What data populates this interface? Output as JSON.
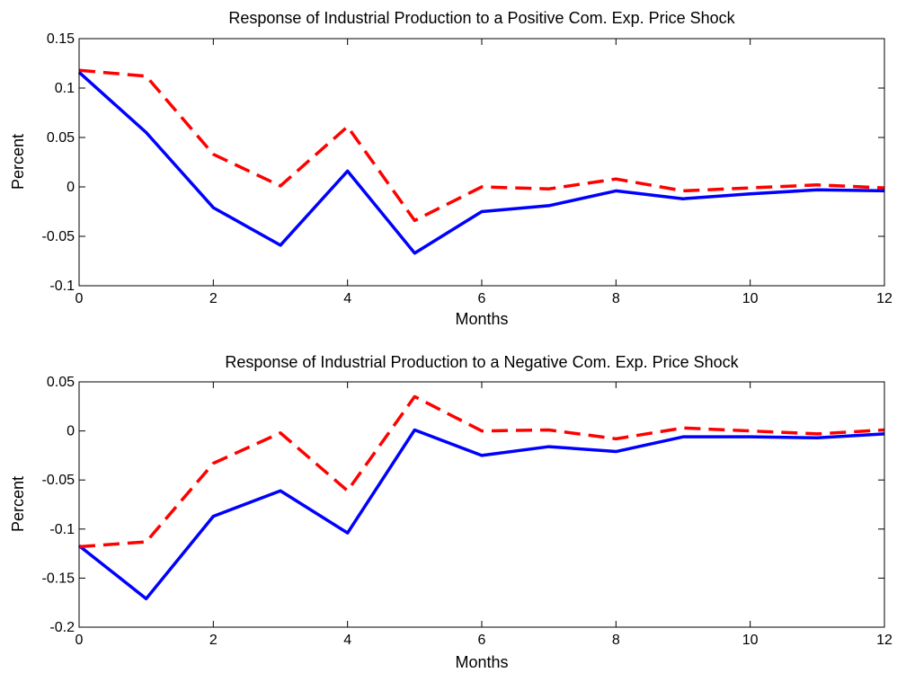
{
  "chart_data": [
    {
      "type": "line",
      "title": "Response of Industrial Production to a Positive Com. Exp. Price Shock",
      "xlabel": "Months",
      "ylabel": "Percent",
      "xlim": [
        0,
        12
      ],
      "ylim": [
        -0.1,
        0.15
      ],
      "xticks": [
        "0",
        "2",
        "4",
        "6",
        "8",
        "10",
        "12"
      ],
      "yticks": [
        "-0.1",
        "-0.05",
        "0",
        "0.05",
        "0.1",
        "0.15"
      ],
      "grid": false,
      "x": [
        0,
        1,
        2,
        3,
        4,
        5,
        6,
        7,
        8,
        9,
        10,
        11,
        12
      ],
      "series": [
        {
          "style": "solid",
          "color": "#0000ff",
          "values": [
            0.116,
            0.055,
            -0.021,
            -0.059,
            0.016,
            -0.067,
            -0.025,
            -0.019,
            -0.004,
            -0.012,
            -0.007,
            -0.003,
            -0.004
          ]
        },
        {
          "style": "dashed",
          "color": "#ff0000",
          "values": [
            0.118,
            0.112,
            0.033,
            0.001,
            0.061,
            -0.034,
            0.0,
            -0.002,
            0.008,
            -0.004,
            -0.001,
            0.002,
            -0.001
          ]
        }
      ]
    },
    {
      "type": "line",
      "title": "Response of Industrial Production to a Negative Com. Exp. Price Shock",
      "xlabel": "Months",
      "ylabel": "Percent",
      "xlim": [
        0,
        12
      ],
      "ylim": [
        -0.2,
        0.05
      ],
      "xticks": [
        "0",
        "2",
        "4",
        "6",
        "8",
        "10",
        "12"
      ],
      "yticks": [
        "-0.2",
        "-0.15",
        "-0.1",
        "-0.05",
        "0",
        "0.05"
      ],
      "grid": false,
      "x": [
        0,
        1,
        2,
        3,
        4,
        5,
        6,
        7,
        8,
        9,
        10,
        11,
        12
      ],
      "series": [
        {
          "style": "solid",
          "color": "#0000ff",
          "values": [
            -0.117,
            -0.171,
            -0.087,
            -0.061,
            -0.104,
            0.001,
            -0.025,
            -0.016,
            -0.021,
            -0.006,
            -0.006,
            -0.007,
            -0.003
          ]
        },
        {
          "style": "dashed",
          "color": "#ff0000",
          "values": [
            -0.118,
            -0.113,
            -0.033,
            -0.002,
            -0.061,
            0.035,
            0.0,
            0.001,
            -0.008,
            0.003,
            0.0,
            -0.003,
            0.001
          ]
        }
      ]
    }
  ]
}
